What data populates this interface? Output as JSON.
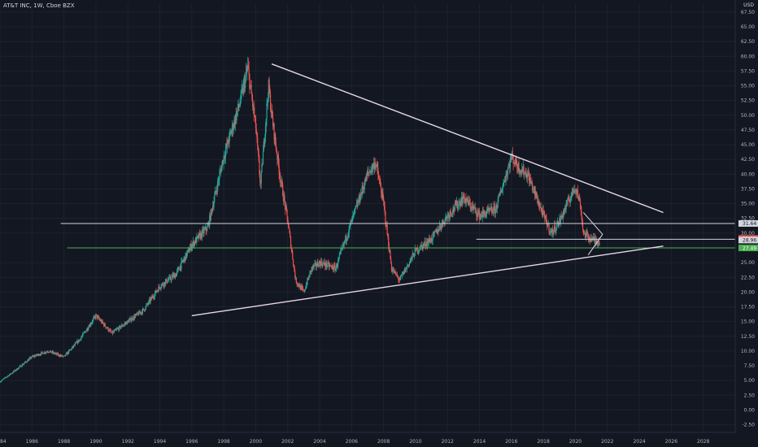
{
  "header": {
    "title": "AT&T INC, 1W, Cboe BZX",
    "currency": "USD"
  },
  "colors": {
    "background": "#131722",
    "grid": "#1e222d",
    "up": "#26a69a",
    "down": "#ef5350",
    "trendline": "#e6d8e8",
    "level": "#d1d4dc",
    "support": "#4caf50"
  },
  "price_badges": [
    {
      "label": "31.64",
      "value": 31.64,
      "color": "#d1d4dc",
      "text_color": "#131722"
    },
    {
      "label": "29.11",
      "value": 29.11,
      "color": "#ef5350",
      "text_color": "#ffffff"
    },
    {
      "label": "28.96",
      "value": 28.96,
      "color": "#d1d4dc",
      "text_color": "#131722"
    },
    {
      "label": "27.49",
      "value": 27.49,
      "color": "#4caf50",
      "text_color": "#ffffff"
    }
  ],
  "chart_data": {
    "type": "line",
    "title": "AT&T INC, 1W, Cboe BZX",
    "xlabel": "",
    "ylabel": "USD",
    "xlim": [
      1984,
      2030
    ],
    "ylim": [
      -3.8,
      69
    ],
    "grid": true,
    "x_ticks": [
      "84",
      "1986",
      "1988",
      "1990",
      "1992",
      "1994",
      "1996",
      "1998",
      "2000",
      "2002",
      "2004",
      "2006",
      "2008",
      "2010",
      "2012",
      "2014",
      "2016",
      "2018",
      "2020",
      "2022",
      "2024",
      "2026",
      "2028"
    ],
    "x_tick_values": [
      1984,
      1986,
      1988,
      1990,
      1992,
      1994,
      1996,
      1998,
      2000,
      2002,
      2004,
      2006,
      2008,
      2010,
      2012,
      2014,
      2016,
      2018,
      2020,
      2022,
      2024,
      2026,
      2028
    ],
    "y_ticks": [
      "67.50",
      "65.00",
      "62.50",
      "60.00",
      "57.50",
      "55.00",
      "52.50",
      "50.00",
      "47.50",
      "45.00",
      "42.50",
      "40.00",
      "37.50",
      "35.00",
      "32.50",
      "30.00",
      "25.00",
      "22.50",
      "20.00",
      "17.50",
      "15.00",
      "12.50",
      "10.00",
      "7.50",
      "5.00",
      "2.50",
      "0.00",
      "-2.50"
    ],
    "y_tick_values": [
      67.5,
      65,
      62.5,
      60,
      57.5,
      55,
      52.5,
      50,
      47.5,
      45,
      42.5,
      40,
      37.5,
      35,
      32.5,
      30,
      25,
      22.5,
      20,
      17.5,
      15,
      12.5,
      10,
      7.5,
      5,
      2.5,
      0,
      -2.5
    ],
    "series": [
      {
        "x": [
          1984,
          1985,
          1986,
          1987,
          1988,
          1989,
          1990,
          1991,
          1992,
          1993,
          1994,
          1995,
          1996,
          1997,
          1998,
          1999,
          1999.5,
          2000,
          2000.3,
          2000.8,
          2001,
          2001.5,
          2002,
          2002.5,
          2003,
          2003.5,
          2004,
          2005,
          2006,
          2007,
          2007.5,
          2008,
          2008.5,
          2009,
          2010,
          2011,
          2012,
          2013,
          2014,
          2015,
          2016,
          2016.5,
          2017,
          2018,
          2018.5,
          2019,
          2020,
          2020.3,
          2020.5,
          2021,
          2021.5
        ],
        "y": [
          4.8,
          6.8,
          9,
          10,
          9,
          12,
          16,
          13,
          15,
          17,
          21,
          23,
          28,
          31,
          43,
          52,
          58,
          48,
          38,
          55,
          50,
          40,
          32,
          22,
          20,
          24,
          25,
          24,
          32,
          40,
          42,
          35,
          24,
          22,
          27,
          29,
          33,
          36,
          33,
          34,
          43,
          41,
          40,
          33,
          30,
          32,
          38,
          35,
          30,
          29,
          28.5
        ]
      }
    ],
    "trendlines": [
      {
        "name": "upper",
        "x": [
          2001,
          2025.5
        ],
        "y": [
          58.7,
          33.5
        ]
      },
      {
        "name": "lower",
        "x": [
          1996,
          2025.5
        ],
        "y": [
          16,
          27.8
        ]
      },
      {
        "name": "pennant-upper",
        "x": [
          2020.5,
          2021.7
        ],
        "y": [
          33.5,
          29.8
        ]
      },
      {
        "name": "pennant-lower",
        "x": [
          2020.8,
          2021.7
        ],
        "y": [
          26.3,
          29.8
        ]
      }
    ],
    "levels": [
      {
        "value": 31.64,
        "x_start": 1987.8,
        "x_end": 2030,
        "color": "#d1d4dc"
      },
      {
        "value": 28.96,
        "x_start": 2013.8,
        "x_end": 2030,
        "color": "#d1d4dc"
      },
      {
        "value": 27.49,
        "x_start": 1988.2,
        "x_end": 2030,
        "color": "#4caf50"
      }
    ]
  }
}
